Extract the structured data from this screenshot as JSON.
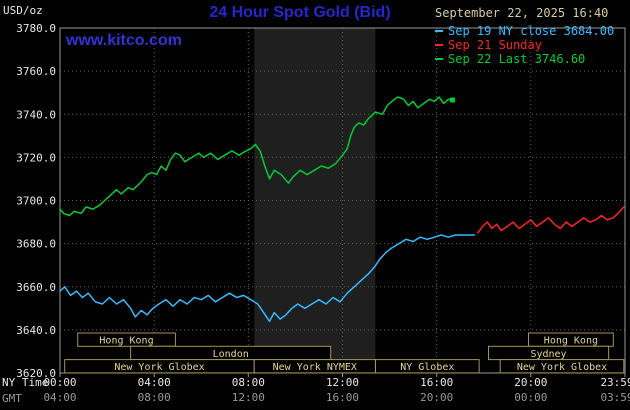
{
  "colors": {
    "background": "#000000",
    "title": "#2626d0",
    "watermark": "#3333d8",
    "datetime": "#d5cc9e",
    "axis_text": "#e8e8e8",
    "gmt_text": "#999999",
    "grid": "#5f5f5f",
    "plot_border": "#999999",
    "band": "#1f1f1f",
    "session_border": "#a39550",
    "session_text": "#e3d694"
  },
  "header": {
    "units": "USD/oz",
    "datetime": "September 22, 2025 16:40",
    "watermark": "www.kitco.com"
  },
  "axes": {
    "ny_name": "NY Time",
    "gmt_name": "GMT",
    "x_tick_hours": [
      0,
      4,
      8,
      12,
      16,
      20,
      24
    ],
    "ny_tick_labels": [
      "00:00",
      "04:00",
      "08:00",
      "12:00",
      "16:00",
      "20:00",
      "23:59"
    ],
    "gmt_tick_labels": [
      "04:00",
      "08:00",
      "12:00",
      "16:00",
      "20:00",
      "00:00",
      "03:59"
    ],
    "y_tick_labels": [
      "3780.0",
      "3760.0",
      "3740.0",
      "3720.0",
      "3700.0",
      "3680.0",
      "3660.0",
      "3640.0",
      "3620.0"
    ]
  },
  "sessions": [
    {
      "row": 1,
      "start": 0.75,
      "end": 4.9,
      "label": "Hong Kong"
    },
    {
      "row": 1,
      "start": 19.9,
      "end": 23.5,
      "label": "Hong Kong"
    },
    {
      "row": 2,
      "start": 3.0,
      "end": 11.5,
      "label": "London"
    },
    {
      "row": 2,
      "start": 18.2,
      "end": 23.3,
      "label": "Sydney"
    },
    {
      "row": 3,
      "start": 0.2,
      "end": 8.25,
      "label": "New York Globex"
    },
    {
      "row": 3,
      "start": 8.25,
      "end": 13.4,
      "label": "New York NYMEX"
    },
    {
      "row": 3,
      "start": 13.4,
      "end": 17.8,
      "label": "NY Globex"
    },
    {
      "row": 3,
      "start": 18.7,
      "end": 23.95,
      "label": "New York Globex"
    }
  ],
  "chart_data": {
    "type": "line",
    "title": "24 Hour Spot Gold (Bid)",
    "xlabel": "NY Time (hours)",
    "ylabel": "USD/oz",
    "xlim": [
      0,
      24
    ],
    "ylim": [
      3620,
      3780
    ],
    "y_tick_step": 20,
    "x_tick_step_hours": 4,
    "grid": true,
    "legend_position": "top-right",
    "shaded_band_hours": [
      8.25,
      13.4
    ],
    "series": [
      {
        "key": "sep19",
        "name": "Sep 19 NY close 3684.00",
        "color": "#33bbff",
        "points": [
          [
            0,
            3658
          ],
          [
            0.2,
            3660
          ],
          [
            0.45,
            3656
          ],
          [
            0.7,
            3658
          ],
          [
            0.95,
            3655
          ],
          [
            1.2,
            3657
          ],
          [
            1.5,
            3653
          ],
          [
            1.8,
            3652
          ],
          [
            2.1,
            3655
          ],
          [
            2.4,
            3652
          ],
          [
            2.7,
            3654
          ],
          [
            3,
            3650
          ],
          [
            3.2,
            3646
          ],
          [
            3.45,
            3649
          ],
          [
            3.7,
            3647
          ],
          [
            3.95,
            3650
          ],
          [
            4.2,
            3652
          ],
          [
            4.5,
            3654
          ],
          [
            4.8,
            3651
          ],
          [
            5.1,
            3654
          ],
          [
            5.4,
            3652
          ],
          [
            5.7,
            3655
          ],
          [
            6,
            3654
          ],
          [
            6.3,
            3656
          ],
          [
            6.6,
            3653
          ],
          [
            6.9,
            3655
          ],
          [
            7.2,
            3657
          ],
          [
            7.5,
            3655
          ],
          [
            7.8,
            3656
          ],
          [
            8.1,
            3654
          ],
          [
            8.4,
            3652
          ],
          [
            8.65,
            3648
          ],
          [
            8.9,
            3644
          ],
          [
            9.1,
            3648
          ],
          [
            9.35,
            3645
          ],
          [
            9.6,
            3647
          ],
          [
            9.85,
            3650
          ],
          [
            10.1,
            3652
          ],
          [
            10.4,
            3650
          ],
          [
            10.7,
            3652
          ],
          [
            11,
            3654
          ],
          [
            11.3,
            3652
          ],
          [
            11.6,
            3655
          ],
          [
            11.9,
            3653
          ],
          [
            12.2,
            3657
          ],
          [
            12.5,
            3660
          ],
          [
            12.8,
            3663
          ],
          [
            13.1,
            3666
          ],
          [
            13.35,
            3669
          ],
          [
            13.6,
            3673
          ],
          [
            13.85,
            3676
          ],
          [
            14.1,
            3678
          ],
          [
            14.4,
            3680
          ],
          [
            14.7,
            3682
          ],
          [
            15,
            3681
          ],
          [
            15.3,
            3683
          ],
          [
            15.6,
            3682
          ],
          [
            15.9,
            3683
          ],
          [
            16.2,
            3684
          ],
          [
            16.5,
            3683
          ],
          [
            16.8,
            3684
          ],
          [
            17.1,
            3684
          ],
          [
            17.4,
            3684
          ],
          [
            17.6,
            3684
          ]
        ]
      },
      {
        "key": "sep21",
        "name": "Sep 21 Sunday",
        "color": "#ff2222",
        "points": [
          [
            17.75,
            3685
          ],
          [
            17.95,
            3688
          ],
          [
            18.15,
            3690
          ],
          [
            18.35,
            3687
          ],
          [
            18.55,
            3689
          ],
          [
            18.75,
            3686
          ],
          [
            19,
            3688
          ],
          [
            19.25,
            3690
          ],
          [
            19.5,
            3687
          ],
          [
            19.75,
            3689
          ],
          [
            20,
            3691
          ],
          [
            20.25,
            3688
          ],
          [
            20.5,
            3690
          ],
          [
            20.75,
            3692
          ],
          [
            21,
            3689
          ],
          [
            21.25,
            3687
          ],
          [
            21.5,
            3690
          ],
          [
            21.75,
            3688
          ],
          [
            22,
            3690
          ],
          [
            22.25,
            3692
          ],
          [
            22.5,
            3690
          ],
          [
            22.75,
            3691
          ],
          [
            23,
            3693
          ],
          [
            23.25,
            3691
          ],
          [
            23.5,
            3692
          ],
          [
            23.7,
            3694
          ],
          [
            23.95,
            3697
          ]
        ]
      },
      {
        "key": "sep22",
        "name": "Sep 22 Last 3746.60",
        "color": "#00cc33",
        "end_marker": true,
        "points": [
          [
            0,
            3696
          ],
          [
            0.15,
            3694
          ],
          [
            0.4,
            3693
          ],
          [
            0.6,
            3695
          ],
          [
            0.9,
            3694
          ],
          [
            1.1,
            3697
          ],
          [
            1.4,
            3696
          ],
          [
            1.7,
            3698
          ],
          [
            1.9,
            3700
          ],
          [
            2.1,
            3702
          ],
          [
            2.4,
            3705
          ],
          [
            2.6,
            3703
          ],
          [
            2.9,
            3706
          ],
          [
            3.1,
            3705
          ],
          [
            3.4,
            3708
          ],
          [
            3.7,
            3712
          ],
          [
            3.9,
            3713
          ],
          [
            4.1,
            3712
          ],
          [
            4.3,
            3716
          ],
          [
            4.5,
            3714
          ],
          [
            4.7,
            3719
          ],
          [
            4.9,
            3722
          ],
          [
            5.1,
            3721
          ],
          [
            5.3,
            3718
          ],
          [
            5.6,
            3720
          ],
          [
            5.9,
            3722
          ],
          [
            6.1,
            3720
          ],
          [
            6.4,
            3722
          ],
          [
            6.7,
            3719
          ],
          [
            7,
            3721
          ],
          [
            7.3,
            3723
          ],
          [
            7.6,
            3721
          ],
          [
            7.9,
            3723
          ],
          [
            8.1,
            3724
          ],
          [
            8.3,
            3726
          ],
          [
            8.5,
            3723
          ],
          [
            8.7,
            3716
          ],
          [
            8.9,
            3710
          ],
          [
            9.1,
            3714
          ],
          [
            9.4,
            3712
          ],
          [
            9.7,
            3708
          ],
          [
            9.9,
            3711
          ],
          [
            10.2,
            3714
          ],
          [
            10.5,
            3712
          ],
          [
            10.8,
            3714
          ],
          [
            11.1,
            3716
          ],
          [
            11.4,
            3715
          ],
          [
            11.7,
            3717
          ],
          [
            12,
            3721
          ],
          [
            12.2,
            3724
          ],
          [
            12.35,
            3730
          ],
          [
            12.5,
            3734
          ],
          [
            12.7,
            3736
          ],
          [
            12.9,
            3735
          ],
          [
            13.1,
            3738
          ],
          [
            13.4,
            3741
          ],
          [
            13.7,
            3740
          ],
          [
            13.9,
            3744
          ],
          [
            14.1,
            3746
          ],
          [
            14.35,
            3748
          ],
          [
            14.6,
            3747
          ],
          [
            14.8,
            3744
          ],
          [
            15,
            3746
          ],
          [
            15.2,
            3743
          ],
          [
            15.45,
            3745
          ],
          [
            15.7,
            3747
          ],
          [
            15.9,
            3746
          ],
          [
            16.1,
            3748
          ],
          [
            16.3,
            3745
          ],
          [
            16.5,
            3747
          ],
          [
            16.67,
            3746.6
          ]
        ]
      }
    ]
  }
}
